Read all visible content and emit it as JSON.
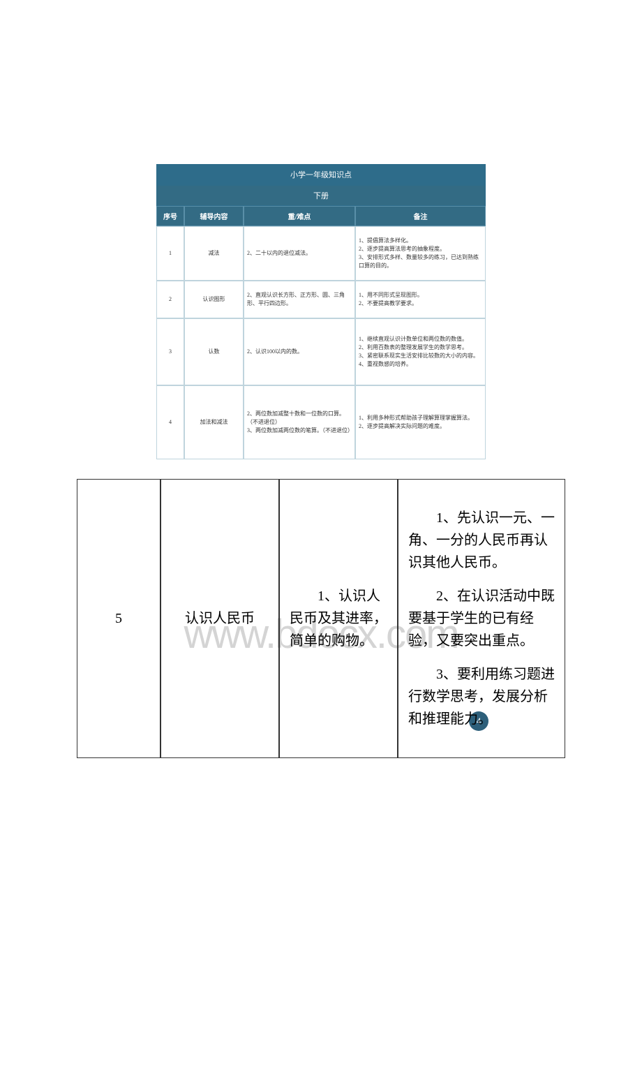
{
  "topTable": {
    "title": "小学一年级知识点",
    "subtitle": "下册",
    "headers": [
      "序号",
      "辅导内容",
      "重/难点",
      "备注"
    ],
    "rows": [
      {
        "seq": "1",
        "content": "减法",
        "points": "2、二十以内的退位减法。",
        "notes": "1、提倡算法多样化。\n2、逐步提高算法思考的抽象程度。\n3、安排形式多样、数量较多的练习，已达到熟练口算的目的。"
      },
      {
        "seq": "2",
        "content": "认识图形",
        "points": "2、直观认识长方形、正方形、圆、三角形、平行四边形。",
        "notes": "1、用不同形式呈现图形。\n2、不要提高教学要求。"
      },
      {
        "seq": "3",
        "content": "认数",
        "points": "2、认识100以内的数。",
        "notes": "1、继续直观认识计数单位和两位数的数值。\n2、利用百数表的整理发展学生的数学思考。\n3、紧密联系现实生活安排比较数的大小的内容。\n4、重视数感的培养。"
      },
      {
        "seq": "4",
        "content": "加法和减法",
        "points": "2、两位数加减整十数和一位数的口算。（不进退位）\n3、两位数加减两位数的笔算。（不进退位）",
        "notes": "1、利用多种形式帮助孩子理解算理掌握算法。\n2、逐步提高解决实际问题的难度。"
      }
    ]
  },
  "pageBadge": "4",
  "watermark": "www.bdocx.com",
  "bottomTable": {
    "row": {
      "seq": "5",
      "content": "认识人民币",
      "points": "1、认识人民币及其进率，简单的购物。",
      "note1": "1、先认识一元、一角、一分的人民币再认识其他人民币。",
      "note2": "2、在认识活动中既要基于学生的已有经验，又要突出重点。",
      "note3": "3、要利用练习题进行数学思考，发展分析和推理能力。"
    }
  }
}
